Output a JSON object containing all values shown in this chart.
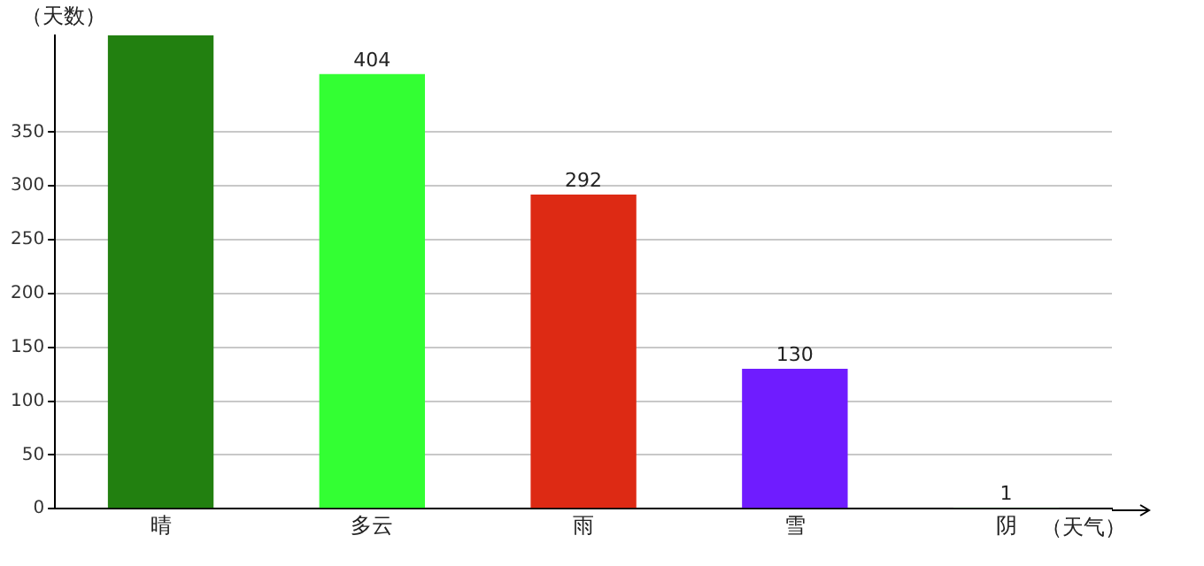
{
  "chart_data": {
    "type": "bar",
    "xlabel": "（天气）",
    "ylabel": "（天数）",
    "categories": [
      "晴",
      "多云",
      "雨",
      "雪",
      "阴"
    ],
    "values": [
      440,
      404,
      292,
      130,
      1
    ],
    "value_labels": [
      null,
      "404",
      "292",
      "130",
      "1"
    ],
    "colors": [
      "#228010",
      "#33ff33",
      "#dd2a14",
      "#6f1cff",
      "#33aa33"
    ],
    "ylim": [
      0,
      440
    ],
    "yticks": [
      0,
      50,
      100,
      150,
      200,
      250,
      300,
      350
    ],
    "grid": "y",
    "legend": false
  }
}
